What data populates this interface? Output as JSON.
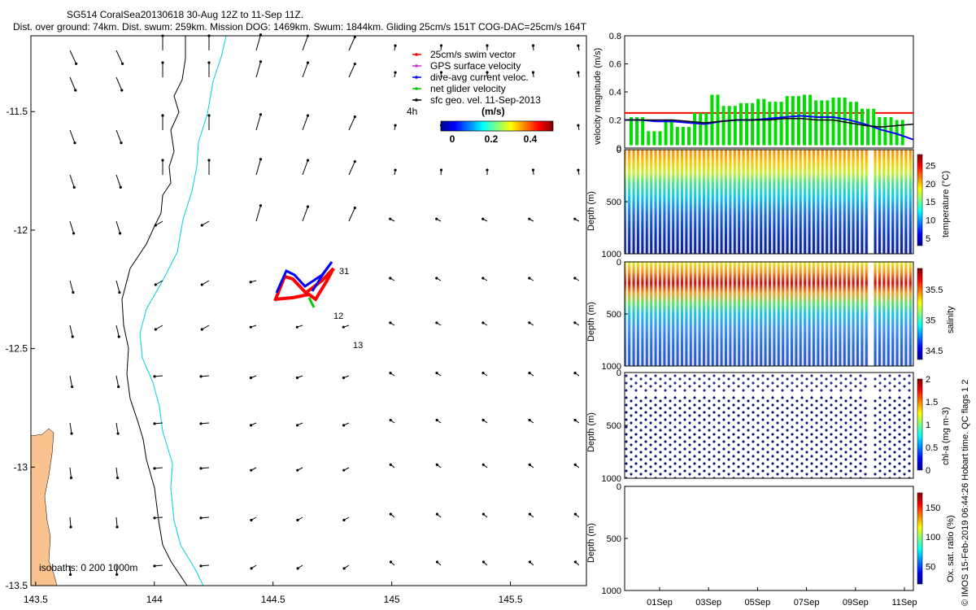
{
  "header": {
    "line1": "SG514 CoralSea20130618 30-Aug 12Z to 11-Sep 11Z.",
    "line2": "Dist. over ground: 74km. Dist. swum: 259km. Mission DOG: 1469km. Swum: 1844km. Gliding 25cm/s 151T COG-DAC=25cm/s 164T"
  },
  "footer_text": "© IMOS 15-Feb-2019 06:44:26 Hobart time. QC flags 1  2",
  "chart_data": [
    {
      "type": "scatter",
      "name": "map",
      "x_ticks": [
        "143.5",
        "144",
        "144.5",
        "145",
        "145.5"
      ],
      "y_ticks": [
        "-11.5",
        "-12",
        "-12.5",
        "-13",
        "-13.5"
      ],
      "xlim": [
        143.48,
        145.82
      ],
      "ylim": [
        -13.5,
        -11.18
      ],
      "isobath_label": "isobaths: 0   200  1000m",
      "legend": [
        {
          "label": "25cm/s swim vector",
          "color": "#ff0000"
        },
        {
          "label": "GPS surface velocity",
          "color": "#cc33cc"
        },
        {
          "label": "dive-avg current veloc.",
          "color": "#0000ff"
        },
        {
          "label": "net glider velocity",
          "color": "#00cc00"
        },
        {
          "label": "sfc geo. vel. 11-Sep-2013",
          "color": "#000000"
        }
      ],
      "colorbar": {
        "title": "(m/s)",
        "ticks": [
          "0",
          "0.2",
          "0.4"
        ],
        "extra_label": "4h"
      },
      "track_labels": [
        "31",
        "12",
        "13"
      ]
    },
    {
      "type": "line",
      "name": "velocity",
      "ylabel": "velocity magnitude (m/s)",
      "y_ticks": [
        "0",
        "0.2",
        "0.4",
        "0.6",
        "0.8"
      ],
      "ylim": [
        0,
        0.8
      ],
      "series": [
        {
          "color": "#ff0000",
          "values": [
            0.25,
            0.25
          ]
        },
        {
          "color": "#00dd00",
          "values": [
            0.22,
            0.12,
            0.2,
            0.15,
            0.25,
            0.38,
            0.3,
            0.32,
            0.35,
            0.33,
            0.37,
            0.38,
            0.34,
            0.36,
            0.33,
            0.28,
            0.22,
            0.2
          ]
        },
        {
          "color": "#0000ff",
          "values": [
            0.2,
            0.2,
            0.19,
            0.19,
            0.18,
            0.17,
            0.19,
            0.2,
            0.2,
            0.21,
            0.22,
            0.23,
            0.22,
            0.22,
            0.2,
            0.17,
            0.13,
            0.1,
            0.06
          ]
        },
        {
          "color": "#000000",
          "values": [
            0.2,
            0.2,
            0.2,
            0.2,
            0.19,
            0.18,
            0.19,
            0.2,
            0.2,
            0.2,
            0.21,
            0.21,
            0.2,
            0.2,
            0.18,
            0.16,
            0.15,
            0.16,
            0.17
          ]
        }
      ]
    },
    {
      "type": "heatmap",
      "name": "temperature",
      "ylabel": "Depth (m)",
      "y_ticks": [
        "0",
        "500",
        "1000"
      ],
      "colorbar_label": "temperature (°C)",
      "colorbar_ticks": [
        "25",
        "20",
        "15",
        "10",
        "5"
      ],
      "colorbar_range": [
        3,
        28
      ]
    },
    {
      "type": "heatmap",
      "name": "salinity",
      "ylabel": "Depth (m)",
      "y_ticks": [
        "0",
        "500",
        "1000"
      ],
      "colorbar_label": "salinity",
      "colorbar_ticks": [
        "35.5",
        "35",
        "34.5"
      ],
      "colorbar_range": [
        34.35,
        35.85
      ]
    },
    {
      "type": "heatmap",
      "name": "chl-a",
      "ylabel": "Depth (m)",
      "y_ticks": [
        "0",
        "500",
        "1000"
      ],
      "colorbar_label": "chl-a (mg m-3)",
      "colorbar_ticks": [
        "2",
        "1.5",
        "1",
        "0.5",
        "0"
      ],
      "colorbar_range": [
        0,
        2
      ]
    },
    {
      "type": "heatmap",
      "name": "oxygen",
      "ylabel": "Depth (m)",
      "y_ticks": [
        "0",
        "500",
        "1000"
      ],
      "colorbar_label": "Ox. sat. ratio (%)",
      "colorbar_ticks": [
        "150",
        "100",
        "50"
      ],
      "colorbar_range": [
        20,
        175
      ],
      "x_ticks": [
        "01Sep",
        "03Sep",
        "05Sep",
        "07Sep",
        "09Sep",
        "11Sep"
      ]
    }
  ]
}
